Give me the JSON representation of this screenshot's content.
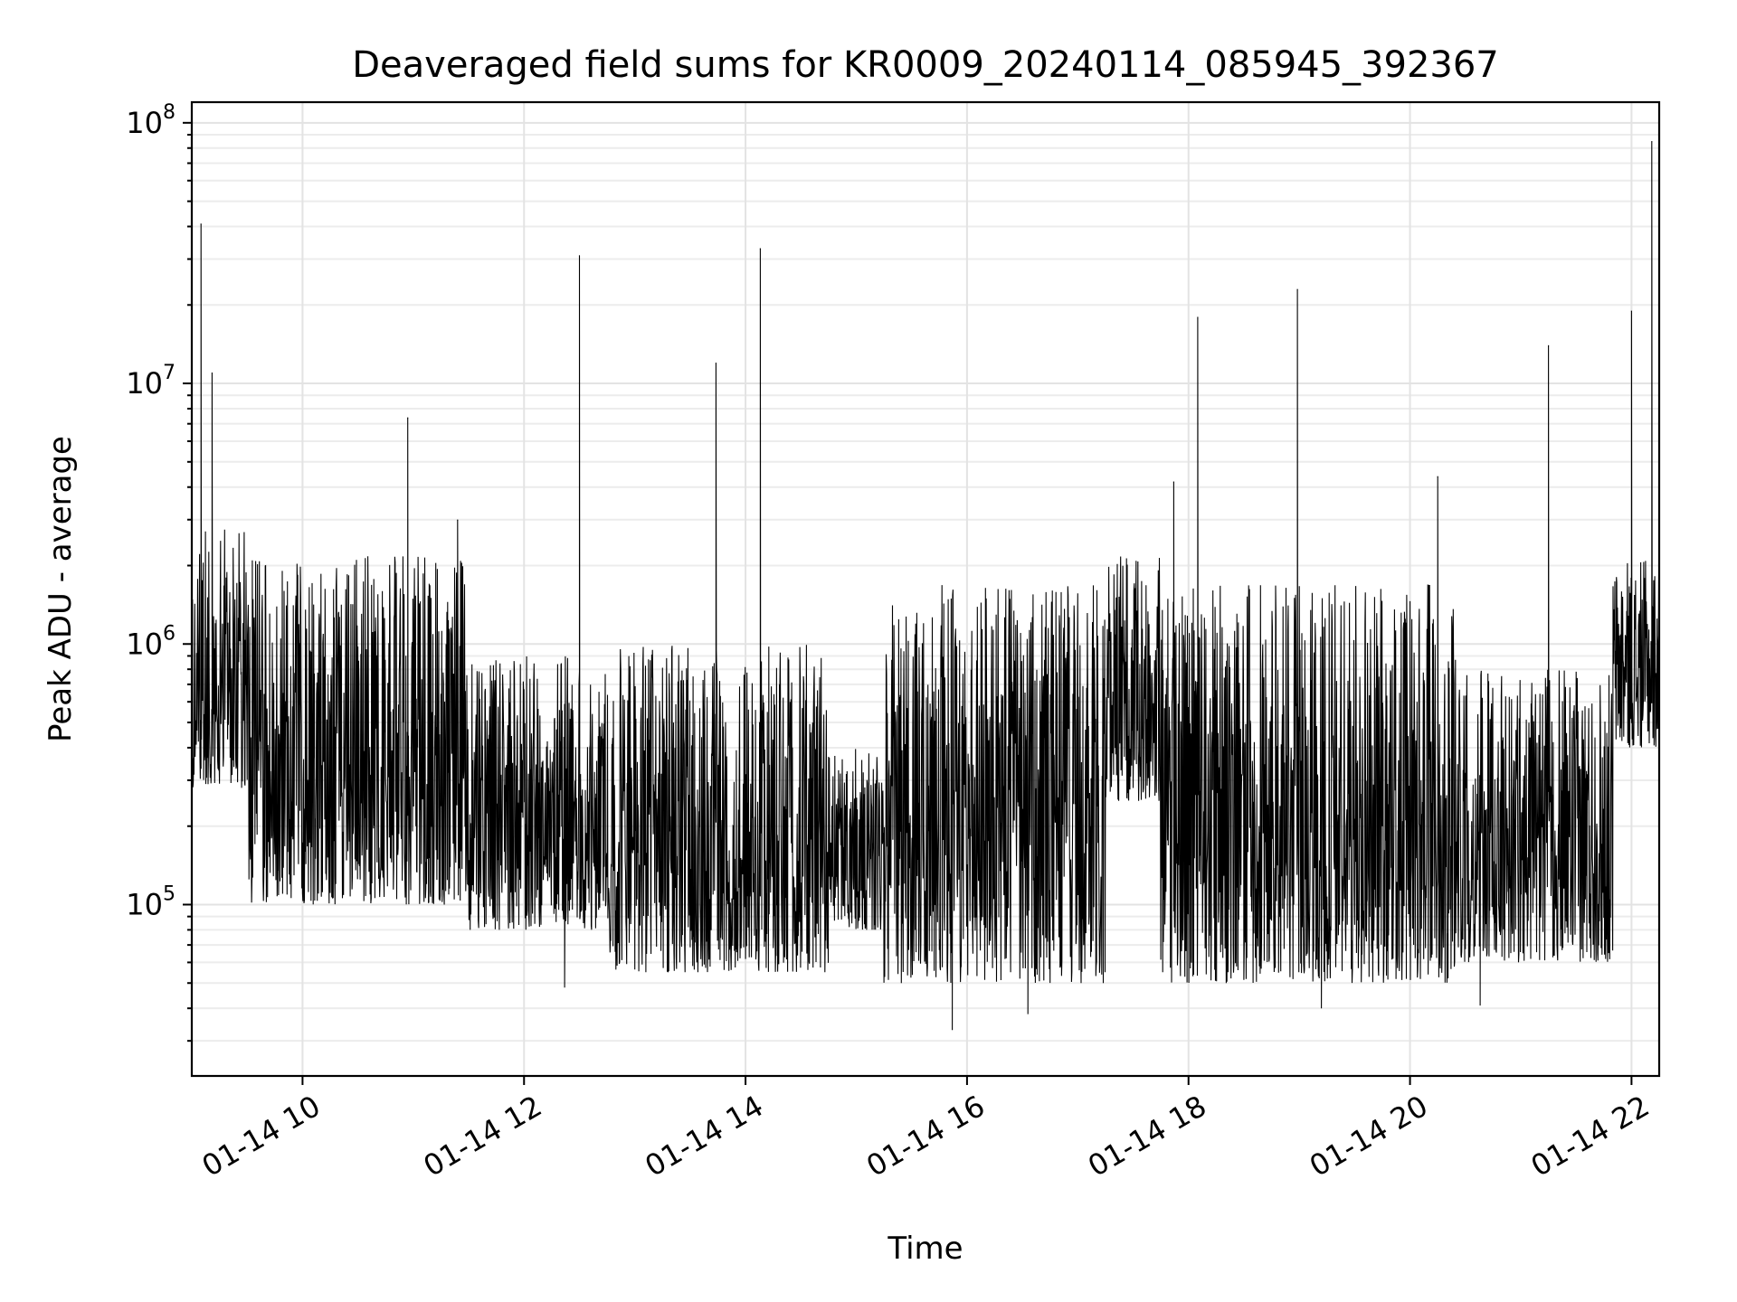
{
  "chart_data": {
    "type": "line",
    "title": "Deaveraged field sums for KR0009_20240114_085945_392367",
    "xlabel": "Time",
    "ylabel": "Peak ADU - average",
    "yscale": "log",
    "grid": true,
    "xlim": [
      "2024-01-14T09:00:00",
      "2024-01-14T22:15:00"
    ],
    "ylim": [
      22000,
      120000000
    ],
    "x_ticks": [
      {
        "value": "2024-01-14T10:00:00",
        "label": "01-14 10"
      },
      {
        "value": "2024-01-14T12:00:00",
        "label": "01-14 12"
      },
      {
        "value": "2024-01-14T14:00:00",
        "label": "01-14 14"
      },
      {
        "value": "2024-01-14T16:00:00",
        "label": "01-14 16"
      },
      {
        "value": "2024-01-14T18:00:00",
        "label": "01-14 18"
      },
      {
        "value": "2024-01-14T20:00:00",
        "label": "01-14 20"
      },
      {
        "value": "2024-01-14T22:00:00",
        "label": "01-14 22"
      }
    ],
    "y_ticks": [
      {
        "value": 100000,
        "base": "10",
        "exp": "5"
      },
      {
        "value": 1000000,
        "base": "10",
        "exp": "6"
      },
      {
        "value": 10000000,
        "base": "10",
        "exp": "7"
      },
      {
        "value": 100000000,
        "base": "10",
        "exp": "8"
      }
    ],
    "series": [
      {
        "color": "#000000",
        "segments": [
          {
            "start": "2024-01-14T09:00:00",
            "end": "2024-01-14T09:30:00",
            "low": 280000,
            "high": 2800000
          },
          {
            "start": "2024-01-14T09:30:00",
            "end": "2024-01-14T11:30:00",
            "low": 100000,
            "high": 2200000
          },
          {
            "start": "2024-01-14T11:30:00",
            "end": "2024-01-14T12:45:00",
            "low": 80000,
            "high": 900000
          },
          {
            "start": "2024-01-14T12:45:00",
            "end": "2024-01-14T14:45:00",
            "low": 55000,
            "high": 1000000
          },
          {
            "start": "2024-01-14T14:45:00",
            "end": "2024-01-14T15:15:00",
            "low": 80000,
            "high": 400000
          },
          {
            "start": "2024-01-14T15:15:00",
            "end": "2024-01-14T17:15:00",
            "low": 50000,
            "high": 1700000
          },
          {
            "start": "2024-01-14T17:15:00",
            "end": "2024-01-14T17:45:00",
            "low": 250000,
            "high": 2200000
          },
          {
            "start": "2024-01-14T17:45:00",
            "end": "2024-01-14T20:25:00",
            "low": 50000,
            "high": 1700000
          },
          {
            "start": "2024-01-14T20:25:00",
            "end": "2024-01-14T21:50:00",
            "low": 60000,
            "high": 800000
          },
          {
            "start": "2024-01-14T21:50:00",
            "end": "2024-01-14T22:15:00",
            "low": 400000,
            "high": 2100000
          }
        ],
        "spikes": [
          {
            "x": "2024-01-14T09:05:00",
            "y": 41000000
          },
          {
            "x": "2024-01-14T09:11:00",
            "y": 11000000
          },
          {
            "x": "2024-01-14T10:57:00",
            "y": 7400000
          },
          {
            "x": "2024-01-14T11:24:00",
            "y": 3000000
          },
          {
            "x": "2024-01-14T12:30:00",
            "y": 31000000
          },
          {
            "x": "2024-01-14T13:44:00",
            "y": 12000000
          },
          {
            "x": "2024-01-14T14:08:00",
            "y": 33000000
          },
          {
            "x": "2024-01-14T17:52:00",
            "y": 4200000
          },
          {
            "x": "2024-01-14T18:05:00",
            "y": 18000000
          },
          {
            "x": "2024-01-14T18:59:00",
            "y": 23000000
          },
          {
            "x": "2024-01-14T20:15:00",
            "y": 4400000
          },
          {
            "x": "2024-01-14T21:15:00",
            "y": 14000000
          },
          {
            "x": "2024-01-14T22:00:00",
            "y": 19000000
          },
          {
            "x": "2024-01-14T22:11:00",
            "y": 85000000
          }
        ],
        "dips": [
          {
            "x": "2024-01-14T12:22:00",
            "y": 48000
          },
          {
            "x": "2024-01-14T15:52:00",
            "y": 33000
          },
          {
            "x": "2024-01-14T16:33:00",
            "y": 38000
          },
          {
            "x": "2024-01-14T19:12:00",
            "y": 40000
          },
          {
            "x": "2024-01-14T20:38:00",
            "y": 41000
          }
        ]
      }
    ]
  }
}
